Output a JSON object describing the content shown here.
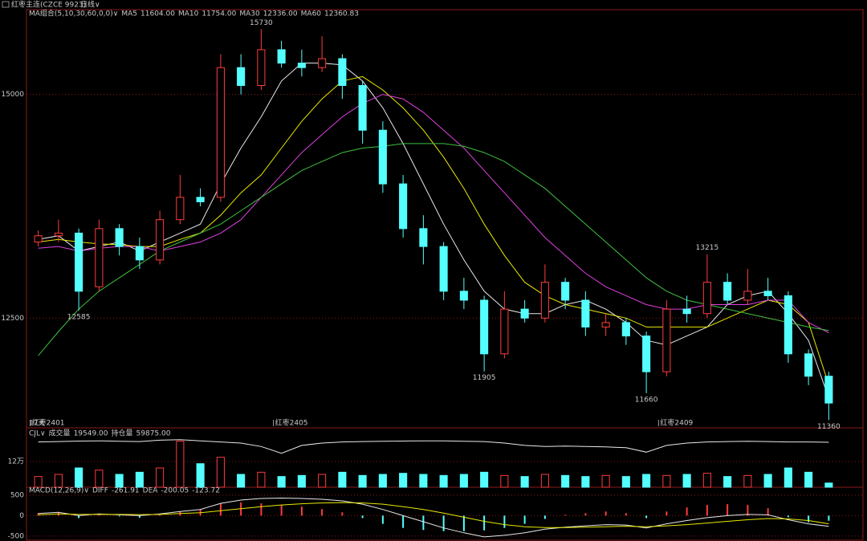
{
  "header": {
    "symbol": "红枣主连(CZCE 9923)",
    "period": "日线∨"
  },
  "chart_data": [
    {
      "type": "candlestick",
      "title": "MA组合(5,10,30,60,0,0)∨",
      "corner_label": "17天",
      "categories": [
        "红枣2401",
        null,
        null,
        null,
        null,
        null,
        null,
        null,
        null,
        null,
        null,
        null,
        "红枣2405",
        null,
        null,
        null,
        null,
        null,
        null,
        null,
        null,
        null,
        null,
        null,
        null,
        null,
        null,
        null,
        null,
        null,
        null,
        "红枣2409",
        null,
        null,
        null,
        null,
        null,
        null,
        null,
        null
      ],
      "candles": {
        "color_up": "#ff3c3c",
        "color_down": "#54ffff",
        "open": [
          13350,
          13420,
          13450,
          12850,
          13500,
          13300,
          13150,
          13600,
          13850,
          13850,
          15300,
          15100,
          15500,
          15350,
          15300,
          15400,
          15100,
          14600,
          14000,
          13500,
          13300,
          12800,
          12700,
          12100,
          12600,
          12500,
          12900,
          12700,
          12400,
          12450,
          12300,
          11900,
          12600,
          12550,
          12900,
          12700,
          12800,
          12750,
          12100,
          11850
        ],
        "high": [
          13480,
          13600,
          13500,
          13600,
          13550,
          13400,
          13700,
          14100,
          13950,
          15450,
          15450,
          15730,
          15600,
          15500,
          15650,
          15450,
          15150,
          14700,
          14100,
          13650,
          13350,
          12950,
          12750,
          12800,
          12700,
          13100,
          12950,
          12800,
          12550,
          12500,
          12350,
          12700,
          12750,
          13215,
          13000,
          13050,
          12950,
          12800,
          12150,
          11900
        ],
        "low": [
          13300,
          13350,
          12585,
          12800,
          13200,
          13050,
          13100,
          13550,
          13750,
          13800,
          15000,
          15050,
          15300,
          15200,
          15250,
          14950,
          14450,
          13900,
          13400,
          13100,
          12700,
          12600,
          11905,
          12050,
          12450,
          12450,
          12600,
          12300,
          12300,
          12200,
          11660,
          11850,
          12450,
          12500,
          12650,
          12650,
          12700,
          12000,
          11750,
          11360
        ],
        "close": [
          13420,
          13450,
          12800,
          13500,
          13300,
          13150,
          13600,
          13850,
          13800,
          15300,
          15100,
          15500,
          15350,
          15300,
          15400,
          15100,
          14600,
          14000,
          13500,
          13300,
          12800,
          12700,
          12100,
          12600,
          12500,
          12900,
          12700,
          12400,
          12450,
          12300,
          11900,
          12600,
          12550,
          12900,
          12700,
          12800,
          12750,
          12100,
          11850,
          11550
        ]
      },
      "series": [
        {
          "name": "MA5",
          "color": "#e8e8e8",
          "value_label": "11604.00",
          "values": [
            13380,
            13420,
            13250,
            13300,
            13350,
            13250,
            13350,
            13450,
            13550,
            14000,
            14400,
            14750,
            15150,
            15350,
            15350,
            15330,
            15150,
            14850,
            14450,
            14000,
            13550,
            13150,
            12800,
            12600,
            12550,
            12550,
            12650,
            12700,
            12600,
            12450,
            12250,
            12200,
            12300,
            12400,
            12650,
            12750,
            12800,
            12550,
            12250,
            11604
          ]
        },
        {
          "name": "MA10",
          "color": "#e8e800",
          "value_label": "11754.00",
          "values": [
            13350,
            13380,
            13350,
            13330,
            13320,
            13300,
            13300,
            13380,
            13450,
            13650,
            13900,
            14100,
            14400,
            14700,
            14950,
            15150,
            15200,
            15050,
            14850,
            14600,
            14300,
            13950,
            13550,
            13200,
            12900,
            12750,
            12650,
            12600,
            12550,
            12500,
            12400,
            12400,
            12400,
            12400,
            12500,
            12600,
            12700,
            12650,
            12450,
            11754
          ]
        },
        {
          "name": "MA30",
          "color": "#e040e0",
          "value_label": "12336.00",
          "values": [
            13280,
            13300,
            13250,
            13280,
            13300,
            13300,
            13250,
            13300,
            13350,
            13450,
            13600,
            13850,
            14100,
            14350,
            14550,
            14750,
            14900,
            15000,
            14950,
            14800,
            14600,
            14400,
            14150,
            13900,
            13650,
            13400,
            13200,
            13000,
            12850,
            12750,
            12650,
            12600,
            12600,
            12650,
            12650,
            12650,
            12700,
            12700,
            12450,
            12336
          ]
        },
        {
          "name": "MA60",
          "color": "#40c040",
          "value_label": "12360.83",
          "values": [
            12080,
            12350,
            12600,
            12800,
            12950,
            13100,
            13250,
            13350,
            13450,
            13550,
            13700,
            13850,
            14000,
            14150,
            14250,
            14350,
            14400,
            14420,
            14450,
            14450,
            14450,
            14420,
            14350,
            14250,
            14100,
            13950,
            13750,
            13550,
            13350,
            13150,
            12950,
            12800,
            12700,
            12650,
            12600,
            12550,
            12500,
            12450,
            12400,
            12360.83
          ]
        }
      ],
      "ylim": [
        11300,
        15930
      ],
      "yticks": [
        12500,
        15000
      ],
      "grid": true
    },
    {
      "type": "volume",
      "title": "CJL∨",
      "series": [
        {
          "name": "成交量",
          "value_label": "19549.00",
          "color_up": "#ff3c3c",
          "color_down": "#54ffff",
          "values": [
            50000,
            60000,
            90000,
            80000,
            60000,
            70000,
            90000,
            215000,
            110000,
            140000,
            60000,
            70000,
            50000,
            55000,
            60000,
            70000,
            55000,
            60000,
            65000,
            60000,
            55000,
            60000,
            70000,
            55000,
            50000,
            60000,
            55000,
            50000,
            55000,
            50000,
            60000,
            55000,
            60000,
            65000,
            50000,
            55000,
            60000,
            90000,
            70000,
            19549
          ]
        },
        {
          "name": "持仓量",
          "value_label": "59875.00",
          "color": "#e8e8e8",
          "axis": "y2",
          "values": [
            60000,
            60200,
            60400,
            60500,
            60300,
            60200,
            60800,
            61000,
            60500,
            60000,
            59500,
            58000,
            55000,
            58500,
            59500,
            60000,
            60200,
            60300,
            60400,
            60500,
            60500,
            60300,
            60200,
            59500,
            58500,
            58000,
            58200,
            58000,
            57800,
            57500,
            55500,
            58500,
            59500,
            60000,
            60200,
            60300,
            60200,
            60000,
            60000,
            59875
          ]
        }
      ],
      "ylim": [
        0,
        232500
      ],
      "yticks": [
        {
          "value": 120000,
          "label": "12万"
        }
      ],
      "y2lim": [
        40000,
        62000
      ],
      "grid": true
    },
    {
      "type": "macd",
      "title": "MACD(12,26,9)∨",
      "series": [
        {
          "name": "DIFF",
          "color": "#e8e8e8",
          "value_label": "-261.91",
          "values": [
            50,
            80,
            0,
            40,
            20,
            0,
            40,
            100,
            150,
            300,
            380,
            420,
            430,
            420,
            400,
            360,
            280,
            150,
            0,
            -150,
            -300,
            -420,
            -520,
            -480,
            -420,
            -330,
            -280,
            -250,
            -220,
            -230,
            -300,
            -200,
            -120,
            -50,
            0,
            30,
            20,
            -100,
            -200,
            -261.91
          ]
        },
        {
          "name": "DEA",
          "color": "#e8e800",
          "value_label": "-200.05",
          "values": [
            20,
            40,
            30,
            30,
            30,
            25,
            30,
            50,
            70,
            120,
            170,
            220,
            260,
            290,
            310,
            320,
            310,
            280,
            220,
            150,
            60,
            -40,
            -140,
            -220,
            -270,
            -290,
            -290,
            -280,
            -270,
            -260,
            -270,
            -250,
            -220,
            -180,
            -140,
            -100,
            -70,
            -80,
            -120,
            -200.05
          ]
        },
        {
          "value_label": "-123.72",
          "color_up": "#ff3c3c",
          "color_down": "#54ffff",
          "values": [
            60,
            80,
            -60,
            20,
            -20,
            -50,
            20,
            100,
            160,
            300,
            320,
            300,
            260,
            220,
            160,
            80,
            -60,
            -200,
            -300,
            -350,
            -380,
            -380,
            -360,
            -300,
            -200,
            -80,
            20,
            60,
            100,
            60,
            -60,
            100,
            200,
            260,
            280,
            260,
            180,
            -40,
            -160,
            -123.72
          ]
        }
      ],
      "ylim": [
        -620,
        635
      ],
      "yticks": [
        500,
        0,
        -500
      ],
      "grid": true
    }
  ]
}
